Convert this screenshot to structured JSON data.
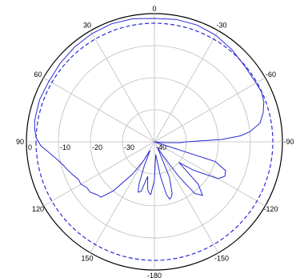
{
  "chart_data": {
    "type": "polar-line",
    "angle_ticks": [
      "0",
      "30",
      "60",
      "90",
      "120",
      "150",
      "-180",
      "-150",
      "-120",
      "-90",
      "-60",
      "-30"
    ],
    "radial_ticks": [
      "0",
      "-10",
      "-20",
      "-30",
      "-40"
    ],
    "rlim": [
      -40,
      0
    ],
    "grid": true,
    "colors": {
      "measured": "#2a2ad6",
      "reference": "#2a2ad6",
      "grid": "#bdbdbd",
      "frame": "#000000"
    },
    "series": [
      {
        "line": "solid",
        "points": [
          [
            0,
            -1.5
          ],
          [
            -10,
            -1.2
          ],
          [
            -20,
            -1.2
          ],
          [
            -30,
            -1.6
          ],
          [
            -40,
            -2.4
          ],
          [
            -50,
            -3.2
          ],
          [
            -55,
            -3.4
          ],
          [
            -60,
            -3.3
          ],
          [
            -65,
            -3.1
          ],
          [
            -70,
            -3.6
          ],
          [
            -75,
            -4.8
          ],
          [
            -80,
            -6.5
          ],
          [
            -84,
            -10.0
          ],
          [
            -86,
            -13.0
          ],
          [
            -88,
            -19.0
          ],
          [
            -90,
            -30.0
          ],
          [
            -92,
            -32.0
          ],
          [
            -95,
            -37.0
          ],
          [
            -100,
            -40.0
          ],
          [
            -105,
            -40.0
          ],
          [
            -108,
            -20.0
          ],
          [
            -112,
            -16.0
          ],
          [
            -116,
            -15.5
          ],
          [
            -120,
            -17.0
          ],
          [
            -126,
            -25.0
          ],
          [
            -130,
            -30.0
          ],
          [
            -134,
            -21.0
          ],
          [
            -138,
            -17.5
          ],
          [
            -142,
            -19.5
          ],
          [
            -145,
            -27.0
          ],
          [
            -148,
            -35.0
          ],
          [
            -152,
            -38.0
          ],
          [
            -157,
            -28.0
          ],
          [
            -161,
            -23.0
          ],
          [
            -163,
            -22.0
          ],
          [
            -165,
            -21.5
          ],
          [
            -167,
            -23.0
          ],
          [
            -170,
            -29.0
          ],
          [
            -174,
            -36.0
          ],
          [
            -178,
            -33.0
          ],
          [
            180,
            -28.0
          ],
          [
            178,
            -26.0
          ],
          [
            176,
            -23.5
          ],
          [
            174,
            -24.0
          ],
          [
            172,
            -25.0
          ],
          [
            169,
            -29.0
          ],
          [
            165,
            -24.0
          ],
          [
            162,
            -23.5
          ],
          [
            160,
            -26.0
          ],
          [
            157,
            -32.0
          ],
          [
            153,
            -37.0
          ],
          [
            150,
            -33.0
          ],
          [
            146,
            -28.0
          ],
          [
            140,
            -20.0
          ],
          [
            136,
            -16.0
          ],
          [
            132,
            -15.5
          ],
          [
            128,
            -14.5
          ],
          [
            124,
            -14.5
          ],
          [
            120,
            -13.5
          ],
          [
            116,
            -13.5
          ],
          [
            112,
            -12.5
          ],
          [
            108,
            -11.5
          ],
          [
            104,
            -10.5
          ],
          [
            100,
            -9.0
          ],
          [
            96,
            -7.0
          ],
          [
            92,
            -4.5
          ],
          [
            88,
            -3.0
          ],
          [
            84,
            -2.4
          ],
          [
            80,
            -2.0
          ],
          [
            75,
            -2.0
          ],
          [
            70,
            -1.8
          ],
          [
            65,
            -2.0
          ],
          [
            60,
            -2.0
          ],
          [
            50,
            -1.7
          ],
          [
            40,
            -1.3
          ],
          [
            30,
            -1.0
          ],
          [
            20,
            -0.8
          ],
          [
            10,
            -1.0
          ],
          [
            0,
            -1.5
          ]
        ]
      },
      {
        "line": "dashed",
        "constant": -3
      }
    ]
  }
}
